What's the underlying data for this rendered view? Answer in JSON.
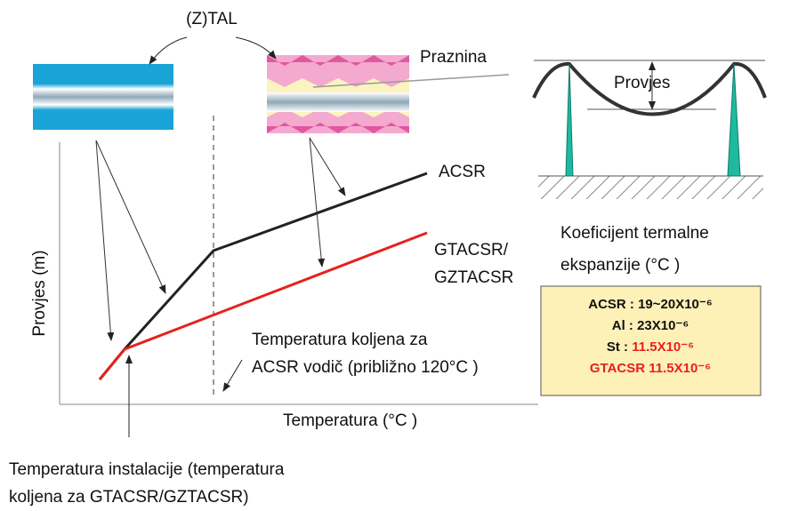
{
  "labels": {
    "ztal": "(Z)TAL",
    "gap": "Praznina",
    "sag_tower": "Provjes",
    "acsr": "ACSR",
    "gtacsr": [
      "GTACSR/",
      "GZTACSR"
    ],
    "y_axis": "Provjes (m)",
    "x_axis": "Temperatura (°C )",
    "knee": [
      "Temperatura koljena za",
      "ACSR vodič (približno 120°C )"
    ],
    "install": [
      "Temperatura instalacije (temperatura",
      "koljena za GTACSR/GZTACSR)"
    ],
    "coef_title": [
      "Koeficijent termalne",
      "ekspanzije (°C )"
    ]
  },
  "coef_table": [
    {
      "label": "ACSR : 19~20X10⁻⁶"
    },
    {
      "label": "Al : 23X10⁻⁶"
    },
    {
      "label": "St : ",
      "value": "11.5X10⁻⁶"
    },
    {
      "value": "GTACSR 11.5X10⁻⁶"
    }
  ]
}
